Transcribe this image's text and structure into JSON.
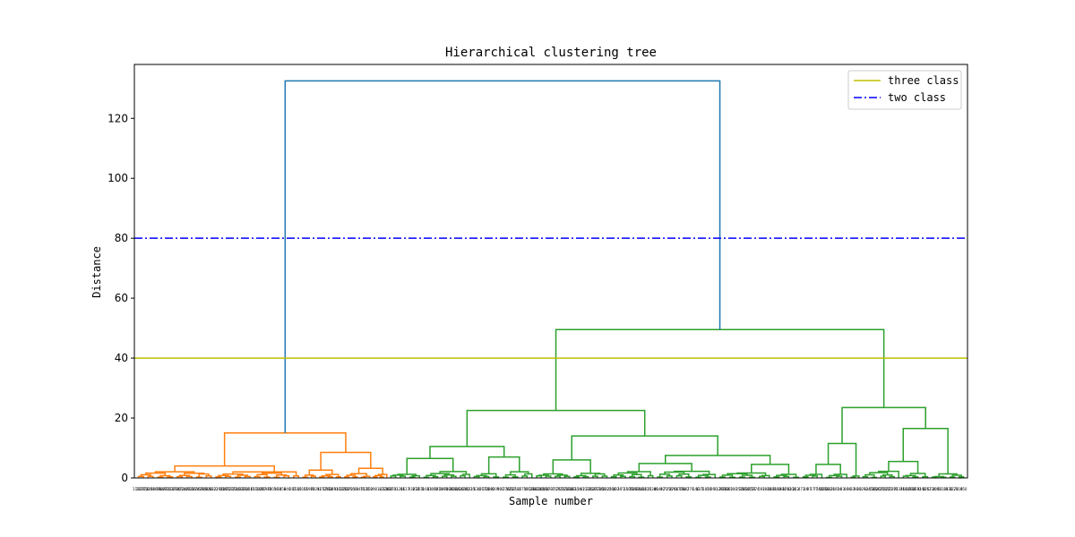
{
  "chart_data": {
    "type": "dendrogram",
    "title": "Hierarchical clustering tree",
    "xlabel": "Sample number",
    "ylabel": "Distance",
    "ylim": [
      0,
      138
    ],
    "yticks": [
      0,
      20,
      40,
      60,
      80,
      100,
      120
    ],
    "grid": false,
    "legend_position": "top-right",
    "cut_lines": [
      {
        "name": "three class",
        "y": 40,
        "color": "#bfbf00",
        "style": "solid"
      },
      {
        "name": "two class",
        "y": 80,
        "color": "#0000ff",
        "style": "dashdot"
      }
    ],
    "cluster_colors": {
      "root": "#1f77b4",
      "cluster_a": "#ff7f0e",
      "cluster_b": "#2ca02c"
    },
    "merges": {
      "root": 132.5,
      "orange_cluster_top": 15.0,
      "orange_left_branch": 4.0,
      "orange_right_branch": 8.5,
      "green_cluster_top": 49.5,
      "green_left_branch": 22.5,
      "green_left_left": 10.5,
      "green_left_right": 14.0,
      "green_left_right_sub": 7.5,
      "green_right_branch": 23.5,
      "green_right_left": 11.5,
      "green_right_right": 16.5
    },
    "leaf_count": 250,
    "leaf_labels_note": ""
  }
}
